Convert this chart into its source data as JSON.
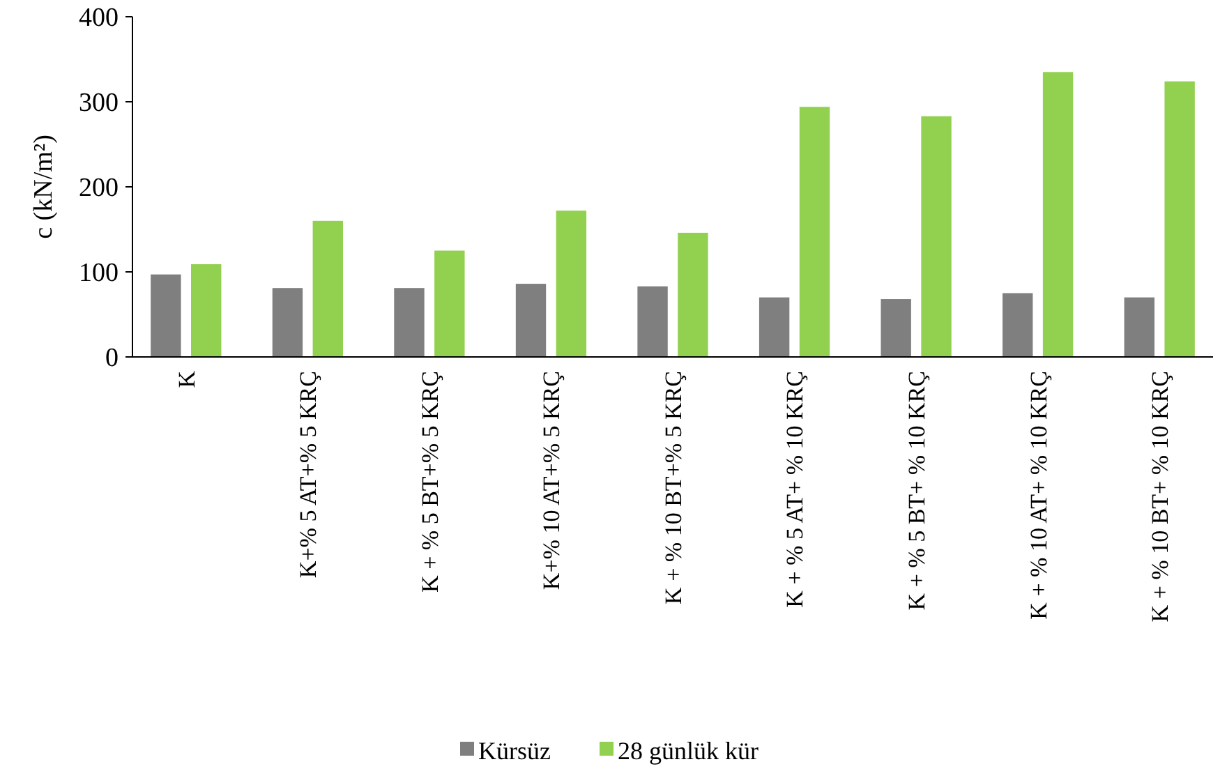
{
  "chart_data": {
    "type": "bar",
    "ylabel": "c (kN/m²)",
    "categories": [
      "K",
      "K+% 5 AT+% 5 KRÇ",
      "K + % 5 BT+% 5 KRÇ",
      "K+% 10 AT+% 5 KRÇ",
      "K + % 10 BT+% 5 KRÇ",
      "K + % 5 AT+ % 10 KRÇ",
      "K + % 5 BT+ % 10 KRÇ",
      "K + % 10 AT+ % 10 KRÇ",
      "K + % 10 BT+ % 10 KRÇ"
    ],
    "series": [
      {
        "name": "Kürsüz",
        "color": "#7f7f7f",
        "values": [
          97,
          81,
          81,
          86,
          83,
          70,
          68,
          75,
          70
        ]
      },
      {
        "name": "28 günlük kür",
        "color": "#92d050",
        "values": [
          109,
          160,
          125,
          172,
          146,
          294,
          283,
          335,
          324
        ]
      }
    ],
    "ylim": [
      0,
      400
    ],
    "yticks": [
      0,
      100,
      200,
      300,
      400
    ],
    "legend": "bottom"
  }
}
